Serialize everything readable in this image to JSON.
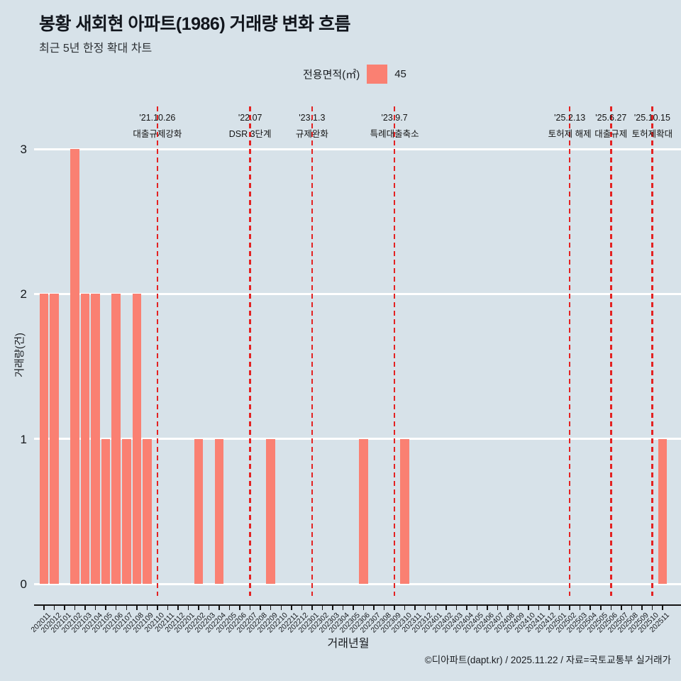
{
  "page": {
    "background": "#d7e2e9"
  },
  "header": {
    "title": "봉황 새회현 아파트(1986) 거래량 변화 흐름",
    "subtitle": "최근 5년 한정 확대 차트"
  },
  "legend": {
    "label": "전용면적(㎡)",
    "value": "45",
    "swatch_color": "#fa8072"
  },
  "chart_data": {
    "type": "bar",
    "title": "봉황 새회현 아파트(1986) 거래량 변화 흐름",
    "xlabel": "거래년월",
    "ylabel": "거래량(건)",
    "ylim": [
      0,
      3
    ],
    "yticks": [
      0,
      1,
      2,
      3
    ],
    "grid": "horizontal-white-lines",
    "legend_position": "top-center",
    "bar_color": "#fa8072",
    "gridline_color": "#ffffff",
    "event_line_color": "#e32222",
    "series_name": "45",
    "categories": [
      "202011",
      "202012",
      "202101",
      "202102",
      "202103",
      "202104",
      "202105",
      "202106",
      "202107",
      "202108",
      "202109",
      "202110",
      "202111",
      "202112",
      "202201",
      "202202",
      "202203",
      "202204",
      "202205",
      "202206",
      "202207",
      "202208",
      "202209",
      "202210",
      "202211",
      "202212",
      "202301",
      "202302",
      "202303",
      "202304",
      "202305",
      "202306",
      "202307",
      "202308",
      "202309",
      "202310",
      "202311",
      "202312",
      "202401",
      "202402",
      "202403",
      "202404",
      "202405",
      "202406",
      "202407",
      "202408",
      "202409",
      "202410",
      "202411",
      "202412",
      "202501",
      "202502",
      "202503",
      "202504",
      "202505",
      "202506",
      "202507",
      "202508",
      "202509",
      "202510",
      "202511"
    ],
    "values": [
      2,
      2,
      0,
      3,
      2,
      2,
      1,
      2,
      1,
      2,
      1,
      0,
      0,
      0,
      0,
      1,
      0,
      1,
      0,
      0,
      0,
      0,
      1,
      0,
      0,
      0,
      0,
      0,
      0,
      0,
      0,
      1,
      0,
      0,
      0,
      1,
      0,
      0,
      0,
      0,
      0,
      0,
      0,
      0,
      0,
      0,
      0,
      0,
      0,
      0,
      0,
      0,
      0,
      0,
      0,
      0,
      0,
      0,
      0,
      0,
      1
    ],
    "annotations": [
      {
        "date": "'21.10.26",
        "label": "대출규제강화",
        "month_index": 11
      },
      {
        "date": "'22.07",
        "label": "DSR 3단계",
        "month_index": 20
      },
      {
        "date": "'23.1.3",
        "label": "규제완화",
        "month_index": 26
      },
      {
        "date": "'23.9.7",
        "label": "특례대출축소",
        "month_index": 34
      },
      {
        "date": "'25.2.13",
        "label": "토허제 해제",
        "month_index": 51
      },
      {
        "date": "'25.6.27",
        "label": "대출규제",
        "month_index": 55
      },
      {
        "date": "'25.10.15",
        "label": "토허제확대",
        "month_index": 59
      }
    ]
  },
  "footer": {
    "credit": "©디아파트(dapt.kr) / 2025.11.22 / 자료=국토교통부 실거래가"
  }
}
